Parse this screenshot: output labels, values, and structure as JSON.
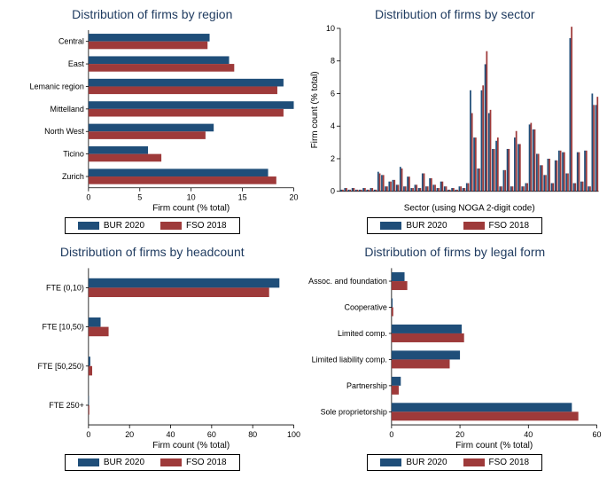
{
  "colors": {
    "bur": "#1f4e79",
    "fso": "#9e3a3a",
    "title": "#1e3a5f",
    "bg": "#ffffff",
    "axis": "#000000"
  },
  "legend": {
    "bur_label": "BUR 2020",
    "fso_label": "FSO 2018"
  },
  "panel_region": {
    "type": "bar-horizontal",
    "title": "Distribution of firms by region",
    "xlabel": "Firm count (% total)",
    "xlim": [
      0,
      20
    ],
    "xticks": [
      0,
      5,
      10,
      15,
      20
    ],
    "bar_half": 0.34,
    "categories": [
      "Central",
      "East",
      "Lemanic region",
      "Mittelland",
      "North West",
      "Ticino",
      "Zurich"
    ],
    "bur": [
      11.8,
      13.7,
      19.0,
      20.0,
      12.2,
      5.8,
      17.5
    ],
    "fso": [
      11.6,
      14.2,
      18.4,
      19.0,
      11.4,
      7.1,
      18.3
    ]
  },
  "panel_sector": {
    "type": "bar-vertical-many",
    "title": "Distribution of firms by sector",
    "xlabel": "Sector (using NOGA 2-digit code)",
    "ylabel": "Firm count (% total)",
    "ylim": [
      0,
      10
    ],
    "yticks": [
      0,
      2,
      4,
      6,
      8,
      10
    ],
    "n_sectors": 70,
    "bur": [
      0.1,
      0.2,
      0.1,
      0.2,
      0.1,
      0.1,
      0.2,
      0.1,
      0.2,
      0.1,
      1.2,
      1.0,
      0.3,
      0.6,
      0.7,
      0.4,
      1.5,
      0.3,
      0.9,
      0.2,
      0.4,
      0.2,
      1.1,
      0.3,
      0.8,
      0.4,
      0.2,
      0.6,
      0.3,
      0.1,
      0.2,
      0.1,
      0.3,
      0.2,
      0.5,
      6.2,
      3.3,
      1.4,
      6.2,
      7.8,
      4.8,
      2.6,
      3.1,
      0.3,
      1.3,
      2.6,
      0.3,
      3.3,
      2.9,
      0.3,
      0.5,
      4.1,
      3.8,
      2.3,
      1.6,
      1.0,
      2.0,
      0.5,
      1.9,
      2.5,
      2.4,
      1.1,
      9.4,
      0.5,
      2.4,
      0.6,
      2.5,
      0.3,
      6.0,
      5.3
    ],
    "fso": [
      0.1,
      0.2,
      0.1,
      0.2,
      0.1,
      0.1,
      0.2,
      0.1,
      0.2,
      0.1,
      1.1,
      1.0,
      0.3,
      0.6,
      0.7,
      0.4,
      1.4,
      0.3,
      0.9,
      0.2,
      0.4,
      0.2,
      1.1,
      0.3,
      0.8,
      0.4,
      0.2,
      0.6,
      0.3,
      0.1,
      0.2,
      0.1,
      0.3,
      0.2,
      0.5,
      4.8,
      3.3,
      1.4,
      6.5,
      8.6,
      5.0,
      2.6,
      3.3,
      0.3,
      1.3,
      2.6,
      0.3,
      3.7,
      2.9,
      0.3,
      0.5,
      4.2,
      3.8,
      2.3,
      1.6,
      1.0,
      2.0,
      0.5,
      1.9,
      2.5,
      2.4,
      1.1,
      10.1,
      0.5,
      2.4,
      0.6,
      2.5,
      0.3,
      5.3,
      5.8
    ]
  },
  "panel_headcount": {
    "type": "bar-horizontal",
    "title": "Distribution of firms by headcount",
    "xlabel": "Firm count (% total)",
    "xlim": [
      0,
      100
    ],
    "xticks": [
      0,
      20,
      40,
      60,
      80,
      100
    ],
    "bar_half": 0.24,
    "categories": [
      "FTE (0,10)",
      "FTE [10,50)",
      "FTE [50,250)",
      "FTE 250+"
    ],
    "bur": [
      93,
      5.9,
      0.9,
      0.2
    ],
    "fso": [
      88,
      9.8,
      1.8,
      0.4
    ]
  },
  "panel_legal": {
    "type": "bar-horizontal",
    "title": "Distribution of firms by legal form",
    "xlabel": "Firm count (% total)",
    "xlim": [
      0,
      60
    ],
    "xticks": [
      0,
      20,
      40,
      60
    ],
    "bar_half": 0.34,
    "categories": [
      "Assoc. and foundation",
      "Cooperative",
      "Limited comp.",
      "Limited liability comp.",
      "Partnership",
      "Sole proprietorship"
    ],
    "bur": [
      3.8,
      0.3,
      20.5,
      20.0,
      2.7,
      52.7
    ],
    "fso": [
      4.6,
      0.5,
      21.2,
      17.0,
      2.1,
      54.6
    ]
  }
}
